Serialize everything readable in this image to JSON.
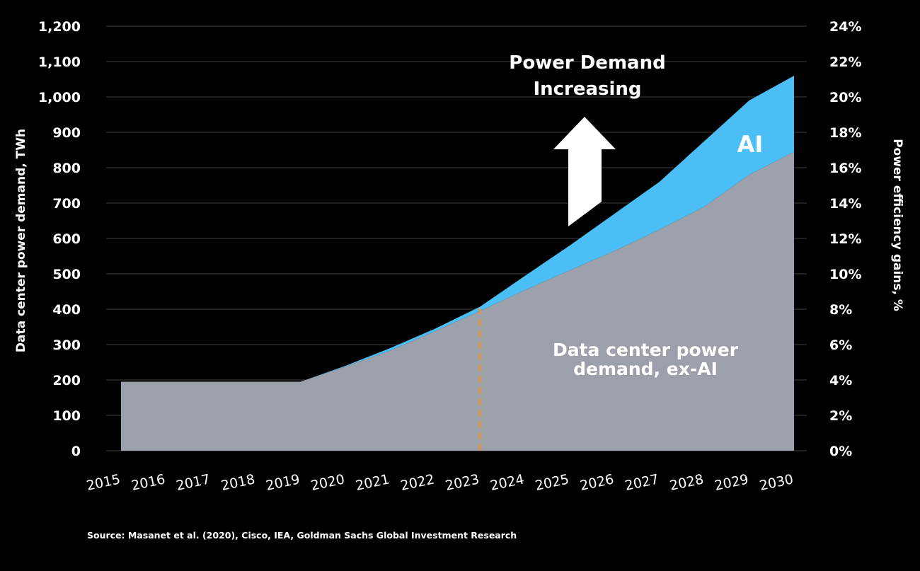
{
  "chart_data": {
    "type": "area",
    "stacked": true,
    "categories": [
      "2015",
      "2016",
      "2017",
      "2018",
      "2019",
      "2020",
      "2021",
      "2022",
      "2023",
      "2024",
      "2025",
      "2026",
      "2027",
      "2028",
      "2029",
      "2030"
    ],
    "series": [
      {
        "name": "Data center power demand, ex-AI",
        "color": "#9ca0aa",
        "values": [
          195,
          195,
          195,
          195,
          195,
          238,
          283,
          338,
          395,
          454,
          510,
          565,
          625,
          690,
          780,
          845
        ]
      },
      {
        "name": "AI",
        "color": "#4bbff5",
        "values": [
          0,
          0,
          0,
          0,
          0,
          2,
          7,
          7,
          12,
          40,
          70,
          105,
          135,
          185,
          210,
          215
        ]
      }
    ],
    "ylabel": "Data center power demand, TWh",
    "ylim": [
      0,
      1200
    ],
    "yticks": [
      "0",
      "100",
      "200",
      "300",
      "400",
      "500",
      "600",
      "700",
      "800",
      "900",
      "1,000",
      "1,100",
      "1,200"
    ],
    "y2label": "Power efficiency gains, %",
    "y2lim": [
      0,
      24
    ],
    "y2ticks": [
      "0%",
      "2%",
      "4%",
      "6%",
      "8%",
      "10%",
      "12%",
      "14%",
      "16%",
      "18%",
      "20%",
      "22%",
      "24%"
    ],
    "grid": true,
    "marker_year": "2023",
    "marker_color": "#e8913a",
    "annotation": [
      "Power Demand",
      "Increasing"
    ],
    "area_labels": {
      "ai": "AI",
      "exai": [
        "Data center power",
        "demand, ex-AI"
      ]
    },
    "source": "Source: Masanet et al. (2020), Cisco, IEA, Goldman Sachs Global Investment Research"
  }
}
